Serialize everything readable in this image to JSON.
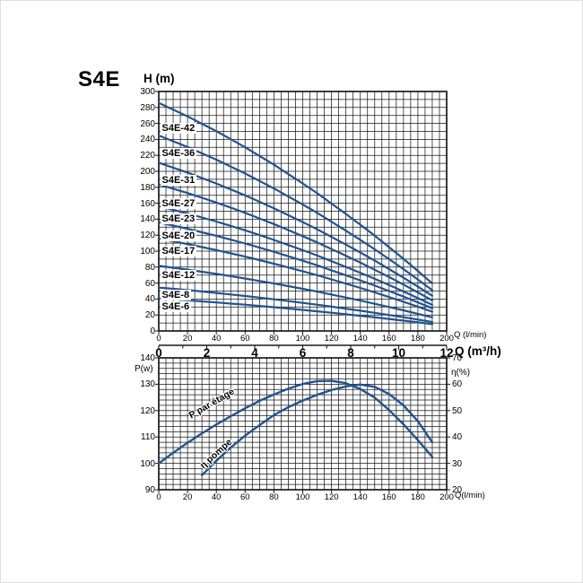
{
  "page": {
    "title": "S4E"
  },
  "colors": {
    "curve": "#20538f",
    "grid": "#1a1a1a",
    "text": "#000000",
    "background": "#ffffff"
  },
  "chart_data": [
    {
      "id": "head-flow-chart",
      "type": "line",
      "y_axis": {
        "label": "H (m)",
        "min": 0,
        "max": 300,
        "tick_step": 20,
        "grid_step": 10
      },
      "x_axis_lmin": {
        "label": "Q (l/min)",
        "min": 0,
        "max": 200,
        "tick_step": 20,
        "grid_step": 5
      },
      "x_axis_m3h": {
        "label": "Q (m³/h)",
        "min": 0,
        "max": 12,
        "tick_step": 2
      },
      "q_lmin": [
        0,
        10,
        20,
        30,
        40,
        50,
        60,
        70,
        80,
        90,
        100,
        110,
        120,
        130,
        140,
        150,
        160,
        170,
        180,
        190
      ],
      "head_per_stage_m": [
        6.8,
        6.6,
        6.4,
        6.18,
        5.96,
        5.72,
        5.48,
        5.22,
        4.96,
        4.68,
        4.4,
        4.11,
        3.8,
        3.49,
        3.17,
        2.84,
        2.5,
        2.15,
        1.79,
        1.42
      ],
      "series": [
        {
          "name": "S4E-42",
          "stages": 42,
          "label_h": 253.5
        },
        {
          "name": "S4E-36",
          "stages": 36,
          "label_h": 222.5
        },
        {
          "name": "S4E-31",
          "stages": 31,
          "label_h": 189
        },
        {
          "name": "S4E-27",
          "stages": 27,
          "label_h": 160
        },
        {
          "name": "S4E-23",
          "stages": 23,
          "label_h": 140
        },
        {
          "name": "S4E-20",
          "stages": 20,
          "label_h": 119.5
        },
        {
          "name": "S4E-17",
          "stages": 17,
          "label_h": 100
        },
        {
          "name": "S4E-12",
          "stages": 12,
          "label_h": 70
        },
        {
          "name": "S4E-8",
          "stages": 8,
          "label_h": 45
        },
        {
          "name": "S4E-6",
          "stages": 6,
          "label_h": 30.5
        }
      ]
    },
    {
      "id": "power-efficiency-chart",
      "type": "line",
      "y_axis_left": {
        "label": "P(w)",
        "min": 90,
        "max": 140,
        "tick_step": 10,
        "grid_step": 2
      },
      "y_axis_right": {
        "label": "η(%)",
        "min": 20,
        "max": 70,
        "tick_step": 10,
        "grid_step": 2
      },
      "x_axis": {
        "label": "Q(l/min)",
        "min": 0,
        "max": 200,
        "tick_step": 20,
        "grid_step": 5
      },
      "series": [
        {
          "name": "P par étage",
          "axis": "left",
          "points": [
            [
              0,
              100
            ],
            [
              10,
              104
            ],
            [
              20,
              107.8
            ],
            [
              30,
              111.4
            ],
            [
              40,
              114.7
            ],
            [
              50,
              117.9
            ],
            [
              60,
              120.9
            ],
            [
              70,
              123.7
            ],
            [
              80,
              126.1
            ],
            [
              90,
              128.3
            ],
            [
              100,
              130.1
            ],
            [
              110,
              131.2
            ],
            [
              120,
              131.3
            ],
            [
              130,
              130.4
            ],
            [
              140,
              128.2
            ],
            [
              150,
              124.9
            ],
            [
              160,
              120.2
            ],
            [
              170,
              114.8
            ],
            [
              180,
              108.8
            ],
            [
              190,
              102.5
            ]
          ],
          "label": {
            "q": 36.5,
            "value": 122.5,
            "angle": -30
          }
        },
        {
          "name": "η pompe",
          "axis": "right",
          "points": [
            [
              30,
              25.5
            ],
            [
              40,
              31
            ],
            [
              50,
              36
            ],
            [
              60,
              40.5
            ],
            [
              70,
              44.5
            ],
            [
              80,
              48.3
            ],
            [
              90,
              51.3
            ],
            [
              100,
              53.8
            ],
            [
              110,
              56
            ],
            [
              120,
              57.8
            ],
            [
              130,
              59.2
            ],
            [
              140,
              59.9
            ],
            [
              150,
              59
            ],
            [
              160,
              56.3
            ],
            [
              170,
              52
            ],
            [
              180,
              46
            ],
            [
              190,
              38
            ]
          ],
          "label": {
            "q": 40,
            "value": 33.5,
            "angle": -42
          }
        }
      ]
    }
  ]
}
